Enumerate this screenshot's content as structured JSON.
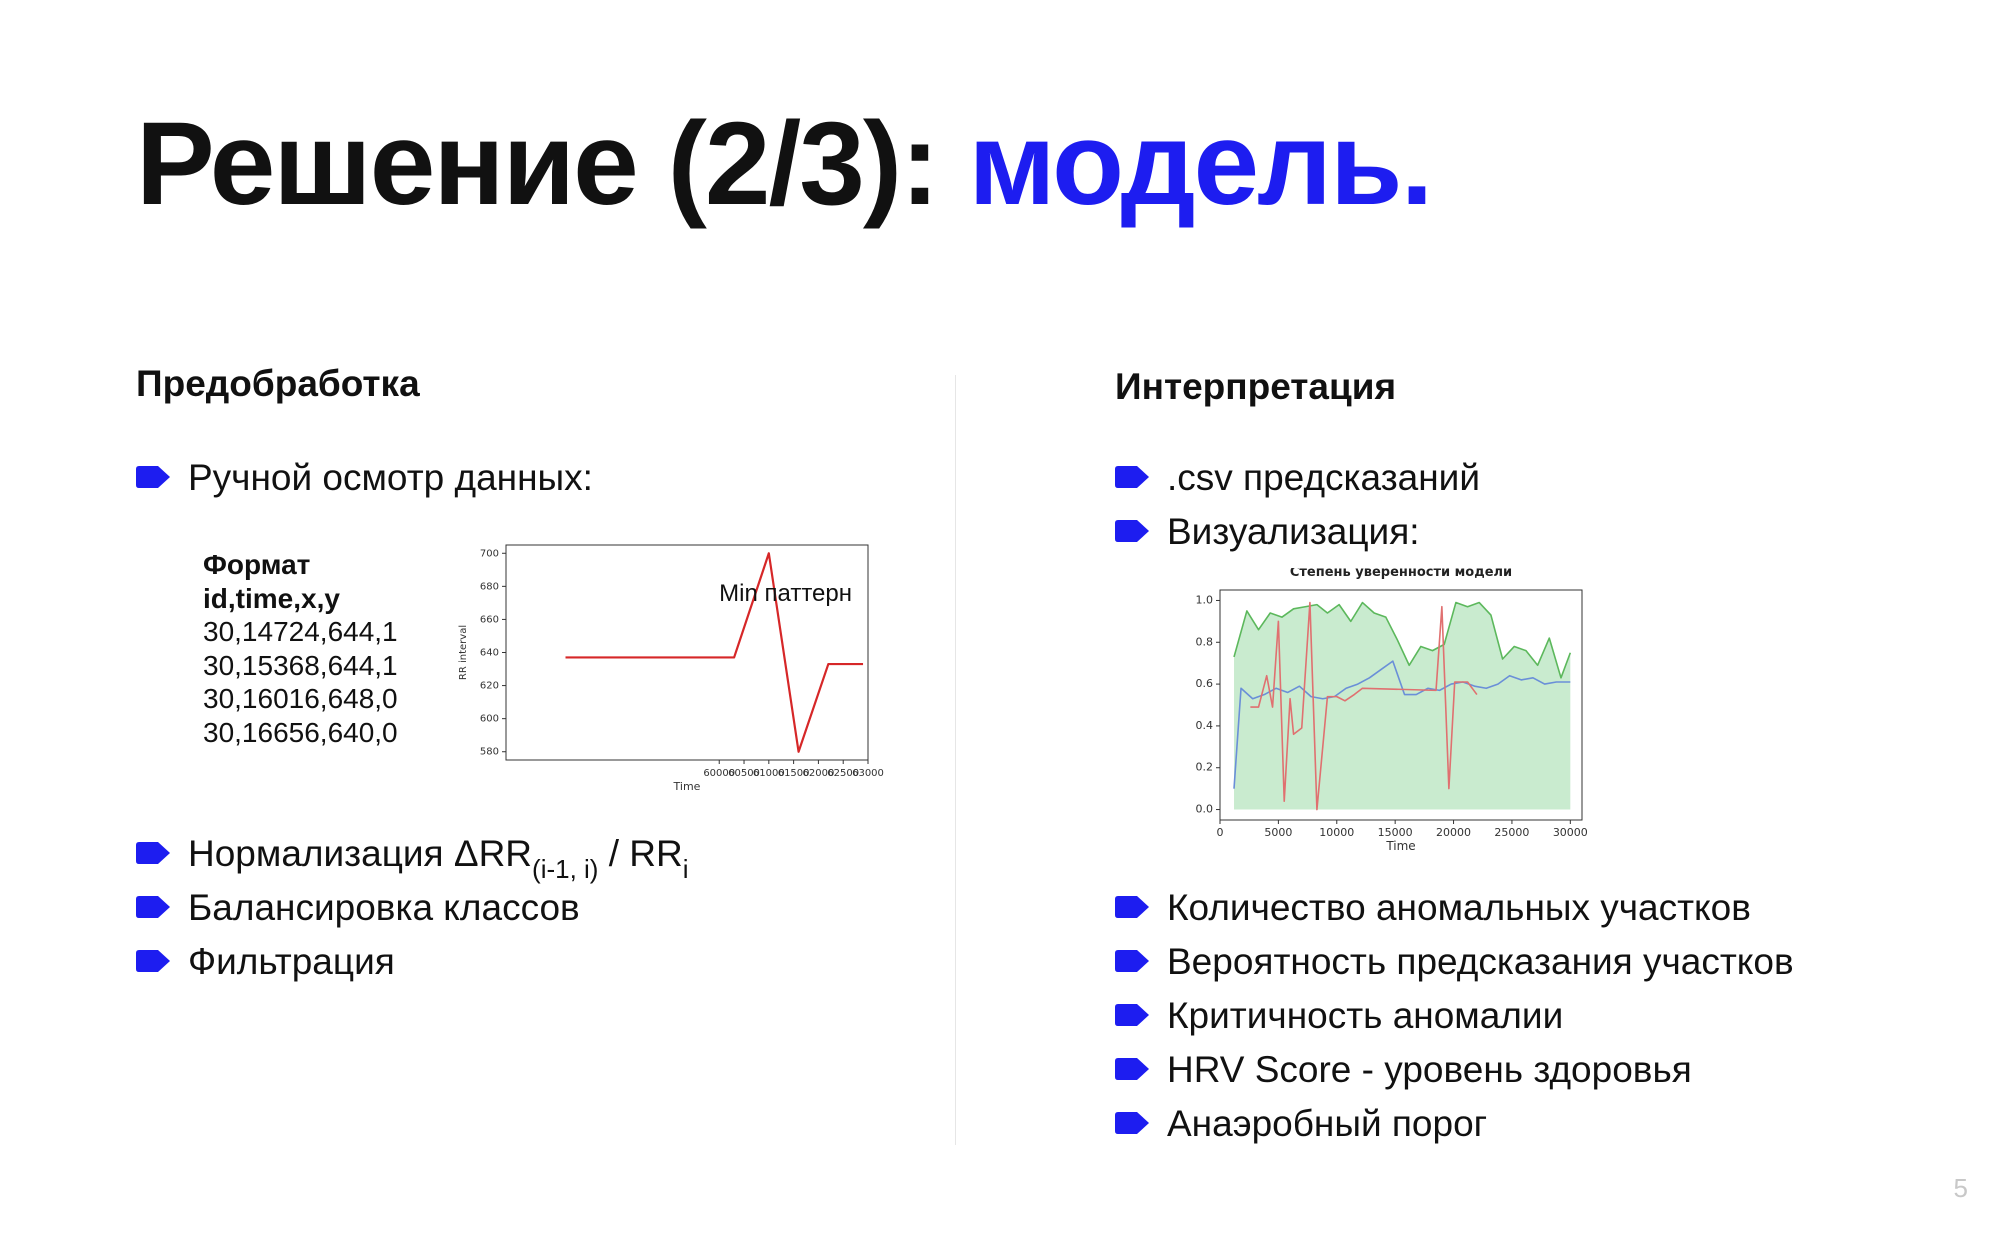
{
  "slide": {
    "title_main": "Решение (2/3): ",
    "title_accent": "модель.",
    "page_number": "5",
    "accent_color": "#1d1df0",
    "bullet_icon": "arrow-right-icon"
  },
  "left": {
    "heading": "Предобработка",
    "bullet1": "Ручной осмотр данных:",
    "format": {
      "label": "Формат",
      "header": "id,time,x,y",
      "rows": [
        "30,14724,644,1",
        "30,15368,644,1",
        "30,16016,648,0",
        "30,16656,640,0"
      ]
    },
    "bullets_after": {
      "norm_prefix": "Нормализация ΔRR",
      "norm_sub1": "(i-1, i)",
      "norm_mid": " / RR",
      "norm_sub2": "i",
      "balance": "Балансировка классов",
      "filter": "Фильтрация"
    }
  },
  "right": {
    "heading": "Интерпретация",
    "bullets_top": [
      ".csv предсказаний",
      "Визуализация:"
    ],
    "bullets_bottom": [
      "Количество аномальных участков",
      "Вероятность предсказания участков",
      "Критичность аномалии",
      "HRV Score - уровень здоровья",
      "Анаэробный порог"
    ]
  },
  "chart_data": [
    {
      "type": "line",
      "annotation": "Min паттерн",
      "xlabel": "Time",
      "ylabel": "RR interval",
      "xlim": [
        55700,
        63000
      ],
      "ylim": [
        575,
        705
      ],
      "xticks": [
        "60000",
        "60500",
        "61000",
        "61500",
        "62000",
        "62500",
        "63000"
      ],
      "yticks": [
        "580",
        "600",
        "620",
        "640",
        "660",
        "680",
        "700"
      ],
      "series": [
        {
          "color": "#d62728",
          "x": [
            56900,
            60300,
            61000,
            61600,
            62200,
            62900
          ],
          "y": [
            637,
            637,
            700,
            580,
            633,
            633
          ]
        }
      ]
    },
    {
      "type": "area",
      "title": "Степень уверенности модели",
      "xlabel": "Time",
      "xlim": [
        0,
        31000
      ],
      "ylim": [
        -0.05,
        1.05
      ],
      "xticks": [
        "0",
        "5000",
        "10000",
        "15000",
        "20000",
        "25000",
        "30000"
      ],
      "yticks": [
        "0.0",
        "0.2",
        "0.4",
        "0.6",
        "0.8",
        "1.0"
      ],
      "fill_color": "#c9ebcf",
      "series": [
        {
          "color": "#5cb85c",
          "x": [
            1200,
            2300,
            3300,
            4300,
            5300,
            6300,
            7300,
            8300,
            9200,
            10200,
            11200,
            12200,
            13200,
            14200,
            15200,
            16200,
            17200,
            18200,
            19200,
            20200,
            21200,
            22200,
            23200,
            24200,
            25200,
            26200,
            27200,
            28200,
            29200,
            30000
          ],
          "y": [
            0.73,
            0.95,
            0.86,
            0.94,
            0.92,
            0.96,
            0.97,
            0.98,
            0.94,
            0.98,
            0.9,
            0.99,
            0.94,
            0.92,
            0.81,
            0.69,
            0.78,
            0.76,
            0.79,
            0.99,
            0.97,
            0.99,
            0.93,
            0.72,
            0.78,
            0.76,
            0.69,
            0.82,
            0.63,
            0.75
          ]
        },
        {
          "color": "#6a8fd8",
          "x": [
            1200,
            1800,
            2800,
            3800,
            4800,
            5800,
            6800,
            7800,
            8800,
            9800,
            10800,
            11800,
            12800,
            13800,
            14800,
            15800,
            16800,
            17800,
            18800,
            19800,
            20800,
            21800,
            22800,
            23800,
            24800,
            25800,
            26800,
            27800,
            28800,
            29800,
            30000
          ],
          "y": [
            0.1,
            0.58,
            0.53,
            0.55,
            0.58,
            0.56,
            0.59,
            0.54,
            0.53,
            0.54,
            0.58,
            0.6,
            0.63,
            0.67,
            0.71,
            0.55,
            0.55,
            0.58,
            0.57,
            0.6,
            0.61,
            0.59,
            0.58,
            0.6,
            0.64,
            0.62,
            0.63,
            0.6,
            0.61,
            0.61,
            0.61
          ]
        },
        {
          "color": "#e07070",
          "x": [
            2600,
            3300,
            4000,
            4500,
            5000,
            5500,
            6000,
            6300,
            7000,
            7700,
            8300,
            9200,
            10000,
            10700,
            11500,
            12200,
            18500,
            19000,
            19600,
            20100,
            21200,
            22000
          ],
          "y": [
            0.49,
            0.49,
            0.64,
            0.49,
            0.9,
            0.04,
            0.53,
            0.36,
            0.39,
            0.99,
            0.0,
            0.54,
            0.54,
            0.52,
            0.55,
            0.58,
            0.57,
            0.97,
            0.1,
            0.61,
            0.61,
            0.55
          ]
        }
      ]
    }
  ]
}
